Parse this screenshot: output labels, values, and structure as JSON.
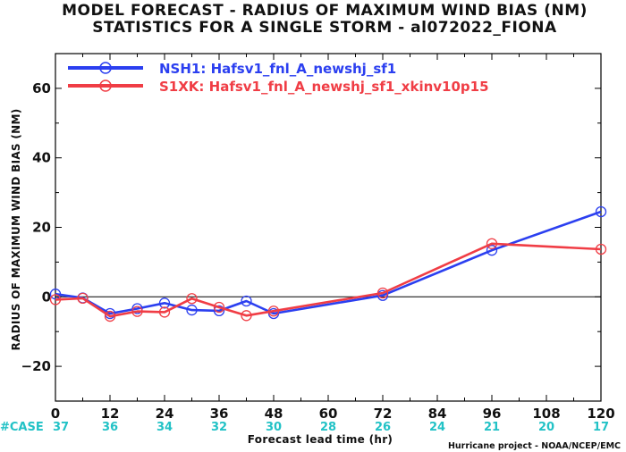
{
  "title_line1": "MODEL FORECAST - RADIUS OF MAXIMUM WIND BIAS (NM)",
  "title_line2": "STATISTICS FOR A SINGLE STORM - al072022_FIONA",
  "ylabel": "RADIUS OF MAXIMUM WIND BIAS (NM)",
  "xlabel": "Forecast lead time (hr)",
  "credit": "Hurricane project - NOAA/NCEP/EMC",
  "case_label": "#CASE",
  "case_color": "#22c2c6",
  "case_counts": [
    {
      "x": 0,
      "n": "37"
    },
    {
      "x": 12,
      "n": "36"
    },
    {
      "x": 24,
      "n": "34"
    },
    {
      "x": 36,
      "n": "32"
    },
    {
      "x": 48,
      "n": "30"
    },
    {
      "x": 60,
      "n": "28"
    },
    {
      "x": 72,
      "n": "26"
    },
    {
      "x": 84,
      "n": "24"
    },
    {
      "x": 96,
      "n": "21"
    },
    {
      "x": 108,
      "n": "20"
    },
    {
      "x": 120,
      "n": "17"
    }
  ],
  "chart_data": {
    "type": "line",
    "title": "MODEL FORECAST - RADIUS OF MAXIMUM WIND BIAS (NM)",
    "subtitle": "STATISTICS FOR A SINGLE STORM - al072022_FIONA",
    "xlabel": "Forecast lead time (hr)",
    "ylabel": "RADIUS OF MAXIMUM WIND BIAS (NM)",
    "xlim": [
      0,
      120
    ],
    "ylim": [
      -30,
      70
    ],
    "xticks": [
      0,
      12,
      24,
      36,
      48,
      60,
      72,
      84,
      96,
      108,
      120
    ],
    "yticks": [
      -20,
      0,
      20,
      40,
      60
    ],
    "zero_line": true,
    "grid": false,
    "legend_position": "top-left",
    "series": [
      {
        "name": "NSH1: Hafsv1_fnl_A_newshj_sf1",
        "color": "#2b3ff0",
        "x": [
          0,
          6,
          12,
          18,
          24,
          30,
          36,
          42,
          48,
          72,
          96,
          120
        ],
        "y": [
          0.8,
          -0.3,
          -4.8,
          -3.4,
          -1.8,
          -3.8,
          -4.0,
          -1.2,
          -4.8,
          0.4,
          13.4,
          24.5
        ]
      },
      {
        "name": "S1XK: Hafsv1_fnl_A_newshj_sf1_xkinv10p15",
        "color": "#f03d45",
        "x": [
          0,
          6,
          12,
          18,
          24,
          30,
          36,
          42,
          48,
          72,
          96,
          120
        ],
        "y": [
          -0.8,
          -0.4,
          -5.6,
          -4.2,
          -4.4,
          -0.5,
          -3.0,
          -5.4,
          -4.1,
          1.1,
          15.3,
          13.7
        ]
      }
    ]
  }
}
